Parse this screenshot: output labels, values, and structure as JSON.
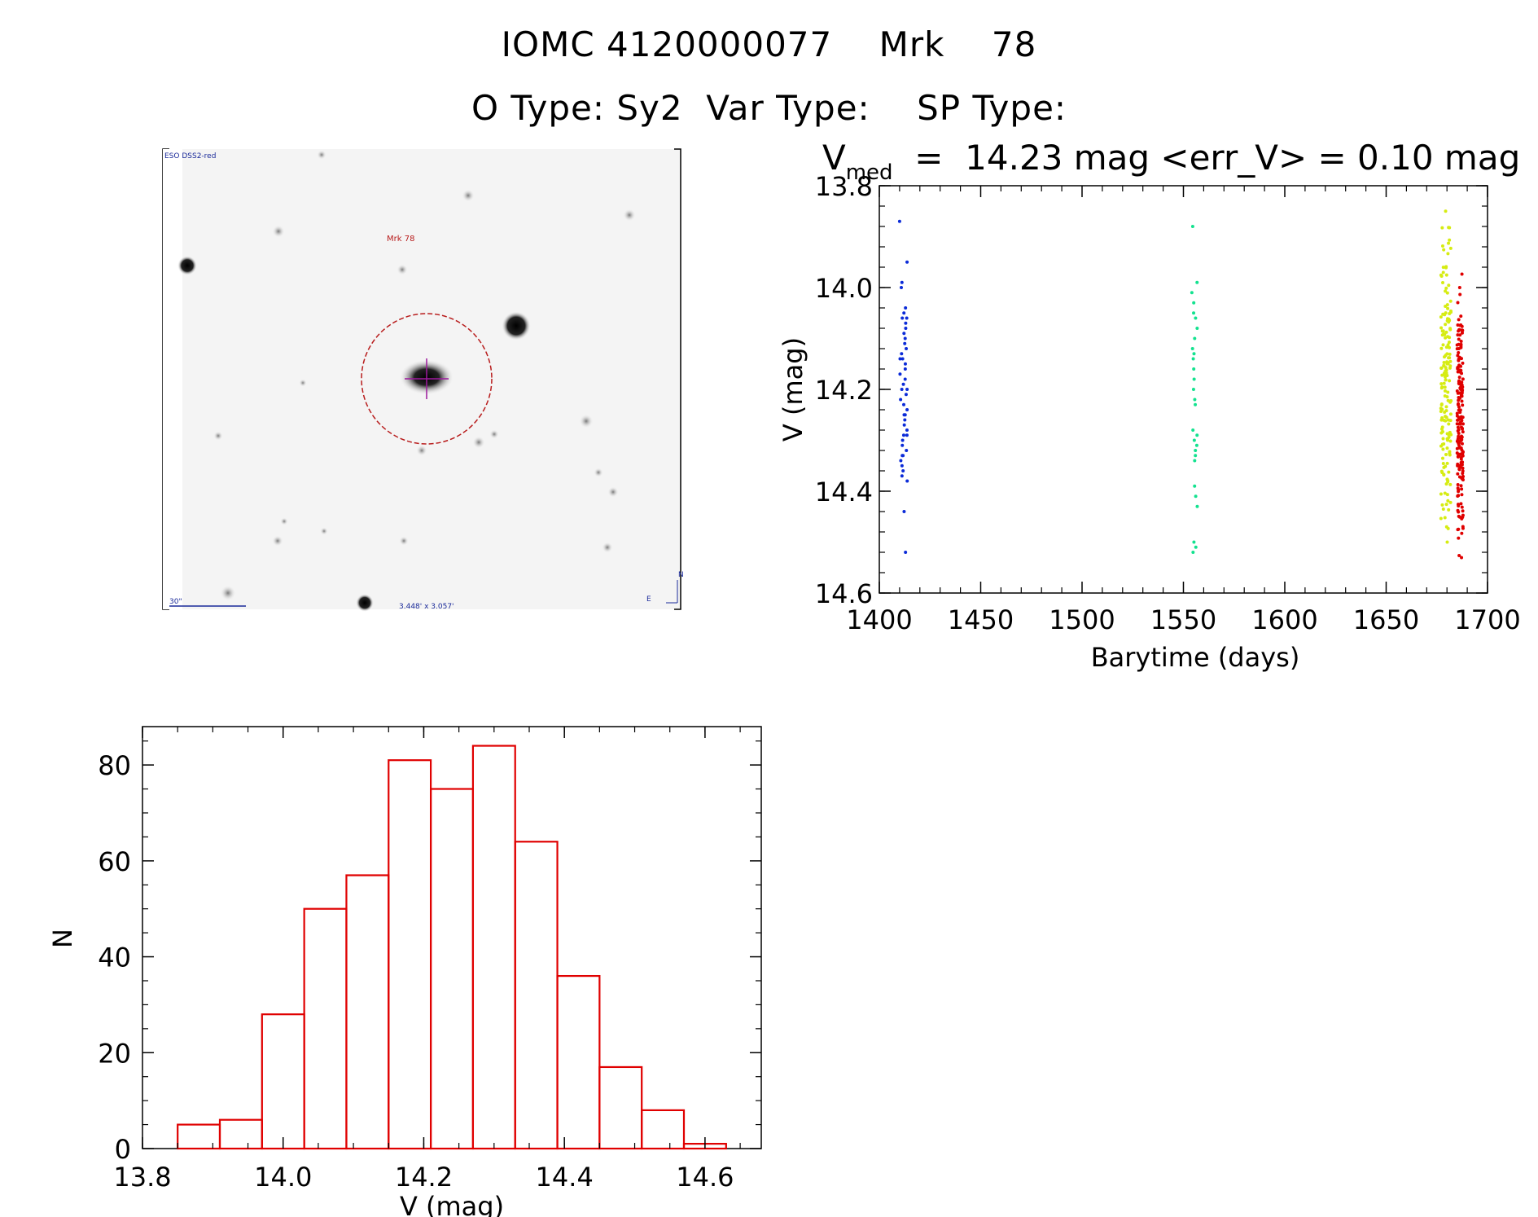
{
  "header": {
    "line1": "IOMC 4120000077    Mrk    78",
    "line2": "O Type: Sy2  Var Type:    SP Type:"
  },
  "stamp": {
    "survey_label": "ESO DSS2-red",
    "target_label": "Mrk 78",
    "scale_label": "30\"",
    "size_label": "3.448' x 3.057'",
    "compass_n": "N",
    "compass_e": "E"
  },
  "colors": {
    "blue": "#0b2bd8",
    "green": "#13e28f",
    "yellow": "#d6ec12",
    "red": "#e00000",
    "hist": "#e00000"
  },
  "chart_data": [
    {
      "type": "scatter",
      "title_parts": {
        "v": "V",
        "sub": "med",
        "rest": "  =  14.23 mag <err_V> = 0.10 mag"
      },
      "xlabel": "Barytime (days)",
      "ylabel": "V (mag)",
      "xlim": [
        1400,
        1700
      ],
      "ylim": [
        14.6,
        13.8
      ],
      "xticks": [
        "1400",
        "1450",
        "1500",
        "1550",
        "1600",
        "1650",
        "1700"
      ],
      "yticks": [
        "13.8",
        "14.0",
        "14.2",
        "14.4",
        "14.6"
      ],
      "series": [
        {
          "color": "blue",
          "x_range": [
            1410,
            1414
          ],
          "y": [
            13.87,
            13.95,
            13.99,
            14.0,
            14.04,
            14.05,
            14.06,
            14.07,
            14.08,
            14.09,
            14.1,
            14.11,
            14.12,
            14.13,
            14.14,
            14.15,
            14.16,
            14.17,
            14.18,
            14.19,
            14.2,
            14.21,
            14.22,
            14.23,
            14.24,
            14.25,
            14.26,
            14.27,
            14.28,
            14.29,
            14.3,
            14.31,
            14.32,
            14.33,
            14.34,
            14.35,
            14.36,
            14.37,
            14.38,
            14.44,
            14.52,
            14.06,
            14.14,
            14.2,
            14.25,
            14.29,
            14.33
          ]
        },
        {
          "color": "green",
          "x_range": [
            1554,
            1557
          ],
          "y": [
            13.88,
            13.99,
            14.01,
            14.03,
            14.05,
            14.06,
            14.08,
            14.1,
            14.12,
            14.13,
            14.14,
            14.16,
            14.18,
            14.2,
            14.22,
            14.23,
            14.28,
            14.29,
            14.3,
            14.31,
            14.32,
            14.33,
            14.34,
            14.39,
            14.41,
            14.43,
            14.5,
            14.51,
            14.52
          ]
        },
        {
          "color": "yellow",
          "x_range": [
            1677,
            1682
          ],
          "y_range": [
            13.85,
            14.5
          ],
          "n": 170
        },
        {
          "color": "red",
          "x_range": [
            1685,
            1688
          ],
          "y_range": [
            13.97,
            14.56
          ],
          "n": 190
        }
      ]
    },
    {
      "type": "bar",
      "subtype": "histogram",
      "xlabel": "V (mag)",
      "ylabel": "N",
      "xlim": [
        13.8,
        14.68
      ],
      "ylim": [
        0,
        88
      ],
      "xticks": [
        "13.8",
        "14.0",
        "14.2",
        "14.4",
        "14.6"
      ],
      "yticks": [
        "0",
        "20",
        "40",
        "60",
        "80"
      ],
      "bin_edges": [
        13.85,
        13.91,
        13.97,
        14.03,
        14.09,
        14.15,
        14.21,
        14.27,
        14.33,
        14.39,
        14.45,
        14.51,
        14.57,
        14.63
      ],
      "values": [
        5,
        6,
        28,
        50,
        57,
        81,
        75,
        84,
        64,
        36,
        17,
        8,
        1
      ]
    }
  ]
}
